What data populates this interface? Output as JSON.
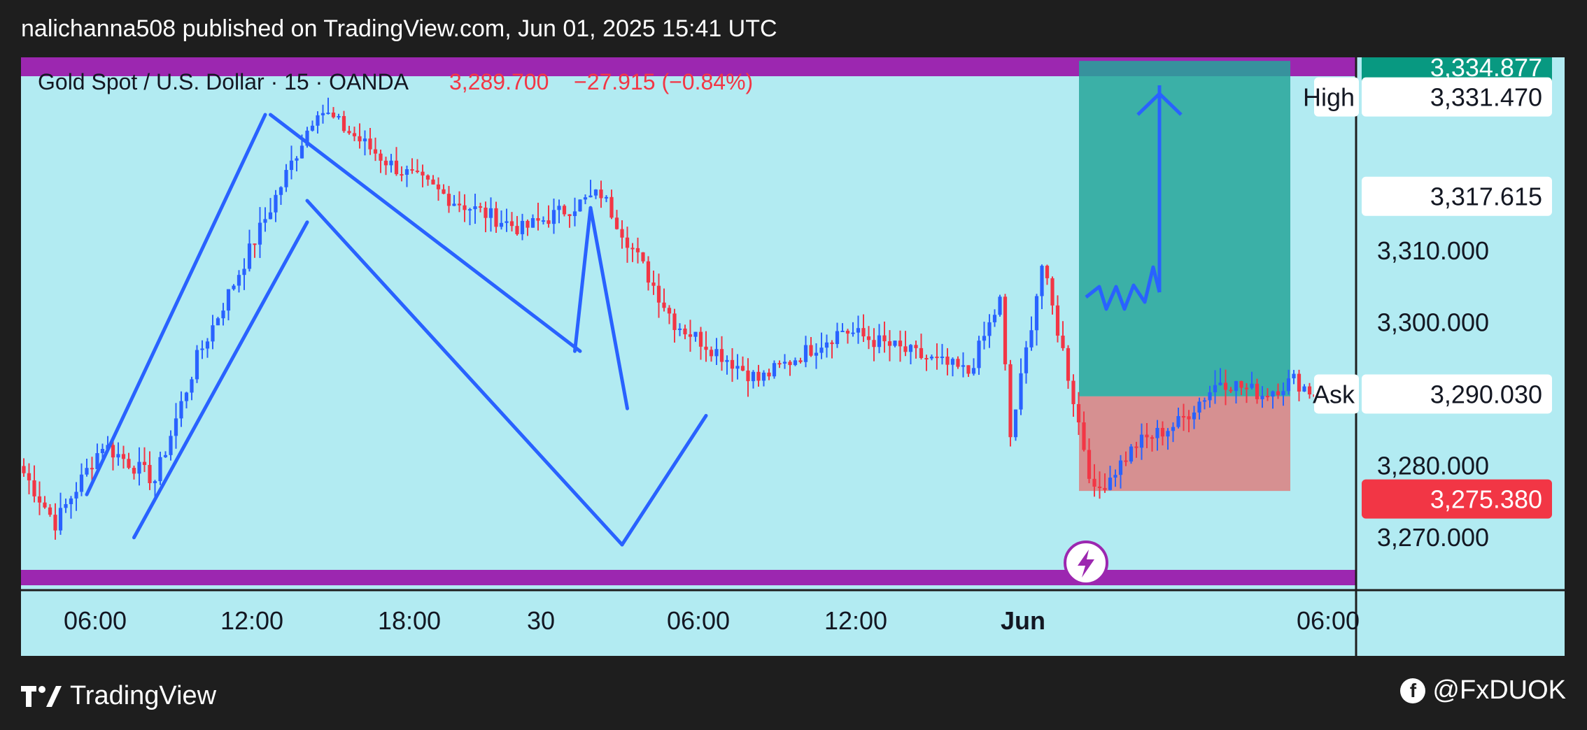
{
  "header": {
    "publisher": "nalichanna508 published on TradingView.com, Jun 01, 2025 15:41 UTC"
  },
  "footer": {
    "brand": "TradingView",
    "handle": "@FxDUOK"
  },
  "colors": {
    "up": "#2962ff",
    "down": "#f23645",
    "bg": "#b2ebf2",
    "frame": "#1e1e1e",
    "band": "#9c27b0",
    "target": "#26a69a",
    "stop": "#ef5350",
    "drawing": "#2962ff"
  },
  "chart_data": {
    "type": "candlestick",
    "symbol": "Gold Spot / U.S. Dollar · 15 · OANDA",
    "last": "3,289.700",
    "change": "−27.915 (−0.84%)",
    "y_axis": {
      "ticks": [
        "3,310.000",
        "3,300.000",
        "3,280.000",
        "3,270.000"
      ],
      "range": [
        3265,
        3337
      ]
    },
    "price_labels": [
      {
        "label": "High",
        "value": "3,331.470"
      },
      {
        "label": "",
        "value": "3,317.615"
      },
      {
        "label": "Ask",
        "value": "3,290.030"
      },
      {
        "label": "",
        "value": "3,275.380"
      },
      {
        "label": "",
        "value": "3,334.877"
      }
    ],
    "x_axis": {
      "ticks": [
        "06:00",
        "12:00",
        "18:00",
        "30",
        "06:00",
        "12:00",
        "Jun",
        "06:00"
      ]
    },
    "waypoints": [
      [
        0,
        3279
      ],
      [
        6,
        3272
      ],
      [
        15,
        3283
      ],
      [
        25,
        3278
      ],
      [
        33,
        3295
      ],
      [
        47,
        3316
      ],
      [
        56,
        3330
      ],
      [
        70,
        3322
      ],
      [
        82,
        3317
      ],
      [
        95,
        3313
      ],
      [
        110,
        3318
      ],
      [
        124,
        3300
      ],
      [
        140,
        3292
      ],
      [
        156,
        3299
      ],
      [
        168,
        3296
      ],
      [
        180,
        3293
      ],
      [
        186,
        3303
      ],
      [
        188,
        3284
      ],
      [
        194,
        3308
      ],
      [
        198,
        3296
      ],
      [
        204,
        3276
      ],
      [
        212,
        3283
      ],
      [
        220,
        3286
      ],
      [
        228,
        3292
      ],
      [
        236,
        3290
      ],
      [
        242,
        3292
      ],
      [
        246,
        3290
      ],
      [
        248,
        3290
      ]
    ],
    "overlays": {
      "position": {
        "entry": 3289.7,
        "target": 3336.5,
        "stop": 3276.5
      },
      "lines": [
        [
          [
            12,
            3276
          ],
          [
            46,
            3329
          ]
        ],
        [
          [
            21,
            3270
          ],
          [
            54,
            3314
          ]
        ],
        [
          [
            47,
            3329
          ],
          [
            106,
            3296
          ]
        ],
        [
          [
            54,
            3317
          ],
          [
            114,
            3269
          ]
        ],
        [
          [
            114,
            3269
          ],
          [
            130,
            3287
          ]
        ],
        [
          [
            105,
            3296
          ],
          [
            108,
            3316
          ]
        ],
        [
          [
            108,
            3316
          ],
          [
            115,
            3288
          ]
        ]
      ]
    }
  }
}
